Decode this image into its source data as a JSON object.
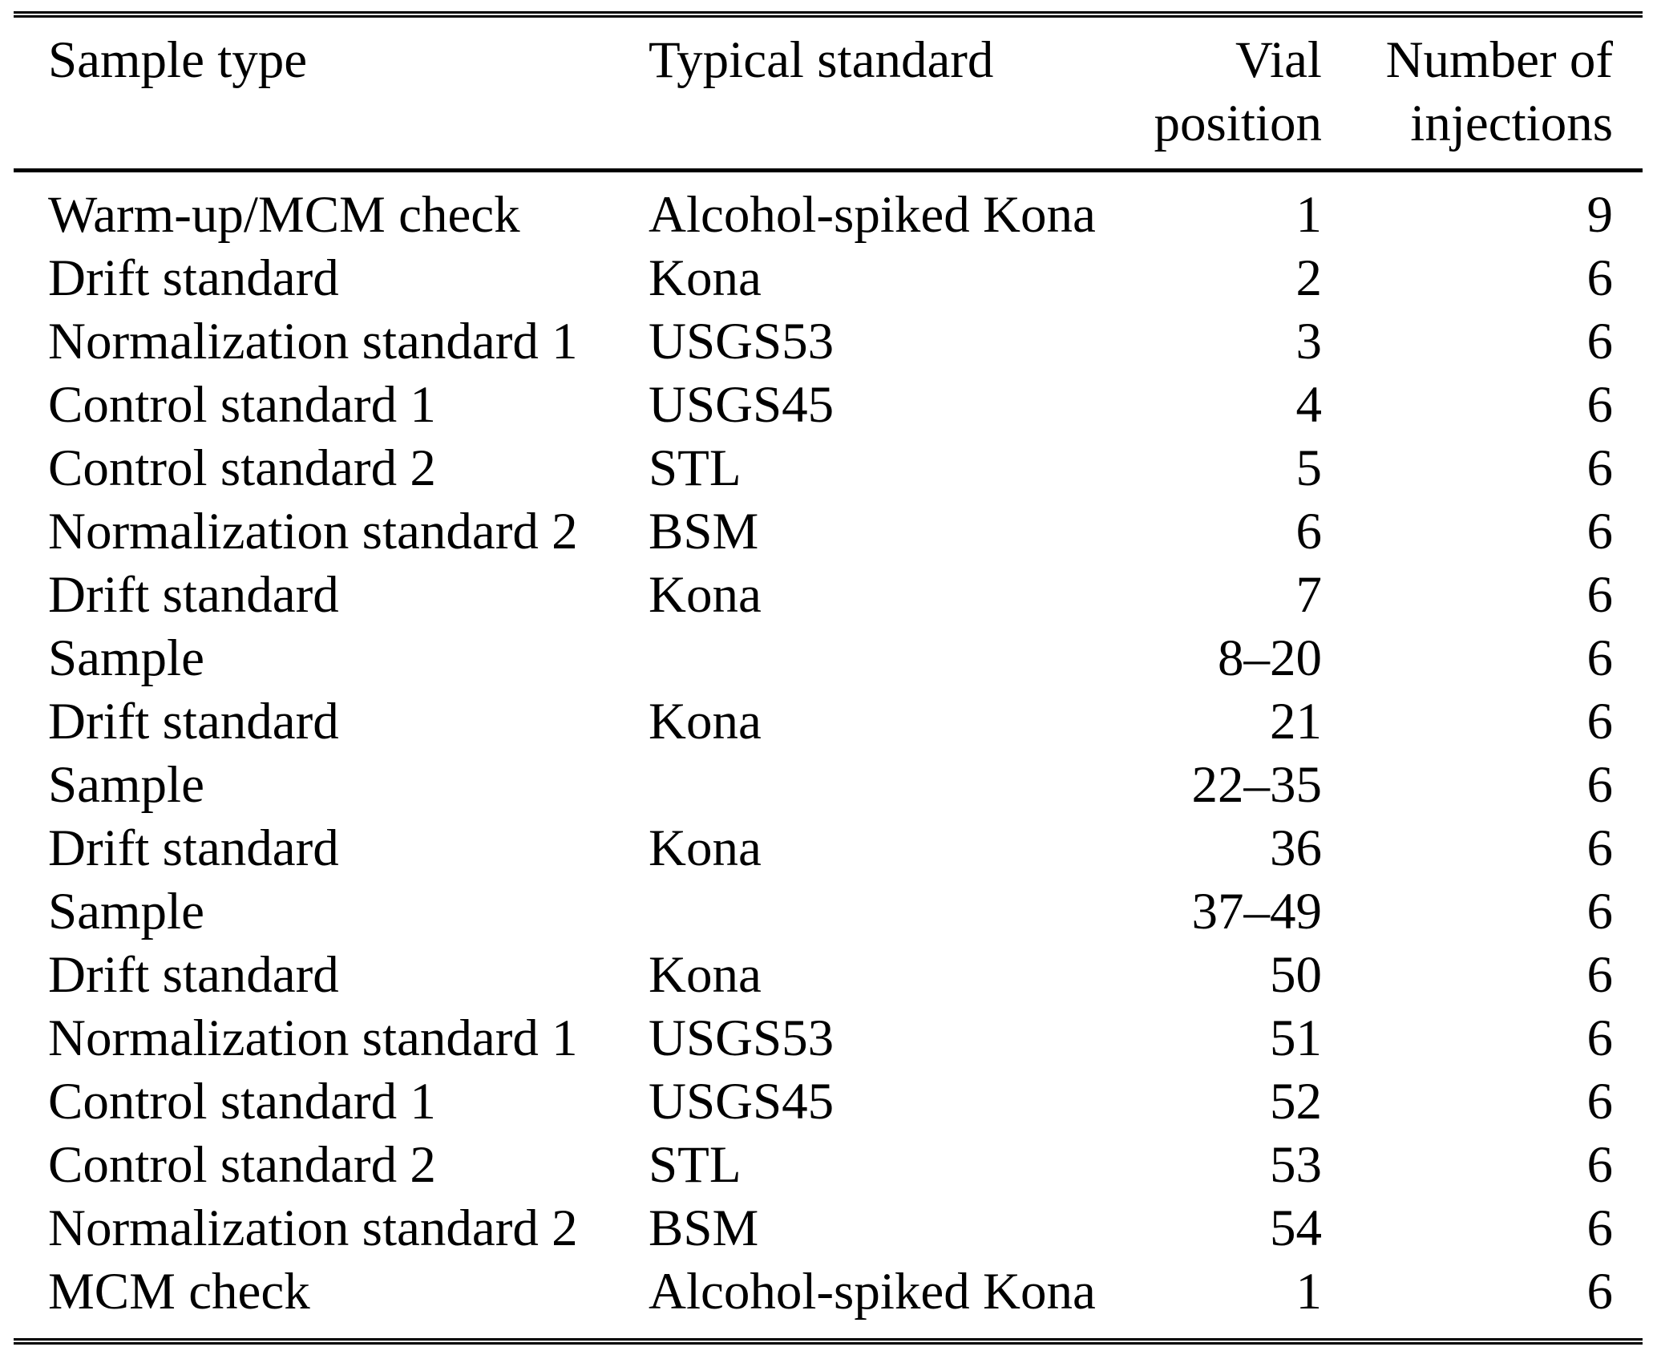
{
  "colors": {
    "background": "#ffffff",
    "text": "#000000",
    "rule": "#000000"
  },
  "table": {
    "columns": [
      {
        "label": "Sample type",
        "lines": [
          "Sample type"
        ],
        "align": "left"
      },
      {
        "label": "Typical standard",
        "lines": [
          "Typical standard"
        ],
        "align": "left"
      },
      {
        "label": "Vial position",
        "lines": [
          "Vial",
          "position"
        ],
        "align": "right"
      },
      {
        "label": "Number of injections",
        "lines": [
          "Number of",
          "injections"
        ],
        "align": "right"
      }
    ],
    "rows": [
      {
        "sample_type": "Warm-up/MCM check",
        "typical_standard": "Alcohol-spiked Kona",
        "vial_position": "1",
        "injections": "9"
      },
      {
        "sample_type": "Drift standard",
        "typical_standard": "Kona",
        "vial_position": "2",
        "injections": "6"
      },
      {
        "sample_type": "Normalization standard 1",
        "typical_standard": "USGS53",
        "vial_position": "3",
        "injections": "6"
      },
      {
        "sample_type": "Control standard 1",
        "typical_standard": "USGS45",
        "vial_position": "4",
        "injections": "6"
      },
      {
        "sample_type": "Control standard 2",
        "typical_standard": "STL",
        "vial_position": "5",
        "injections": "6"
      },
      {
        "sample_type": "Normalization standard 2",
        "typical_standard": "BSM",
        "vial_position": "6",
        "injections": "6"
      },
      {
        "sample_type": "Drift standard",
        "typical_standard": "Kona",
        "vial_position": "7",
        "injections": "6"
      },
      {
        "sample_type": "Sample",
        "typical_standard": "",
        "vial_position": "8–20",
        "injections": "6"
      },
      {
        "sample_type": "Drift standard",
        "typical_standard": "Kona",
        "vial_position": "21",
        "injections": "6"
      },
      {
        "sample_type": "Sample",
        "typical_standard": "",
        "vial_position": "22–35",
        "injections": "6"
      },
      {
        "sample_type": "Drift standard",
        "typical_standard": "Kona",
        "vial_position": "36",
        "injections": "6"
      },
      {
        "sample_type": "Sample",
        "typical_standard": "",
        "vial_position": "37–49",
        "injections": "6"
      },
      {
        "sample_type": "Drift standard",
        "typical_standard": "Kona",
        "vial_position": "50",
        "injections": "6"
      },
      {
        "sample_type": "Normalization standard 1",
        "typical_standard": "USGS53",
        "vial_position": "51",
        "injections": "6"
      },
      {
        "sample_type": "Control standard 1",
        "typical_standard": "USGS45",
        "vial_position": "52",
        "injections": "6"
      },
      {
        "sample_type": "Control standard 2",
        "typical_standard": "STL",
        "vial_position": "53",
        "injections": "6"
      },
      {
        "sample_type": "Normalization standard 2",
        "typical_standard": "BSM",
        "vial_position": "54",
        "injections": "6"
      },
      {
        "sample_type": "MCM check",
        "typical_standard": "Alcohol-spiked Kona",
        "vial_position": "1",
        "injections": "6"
      }
    ]
  }
}
